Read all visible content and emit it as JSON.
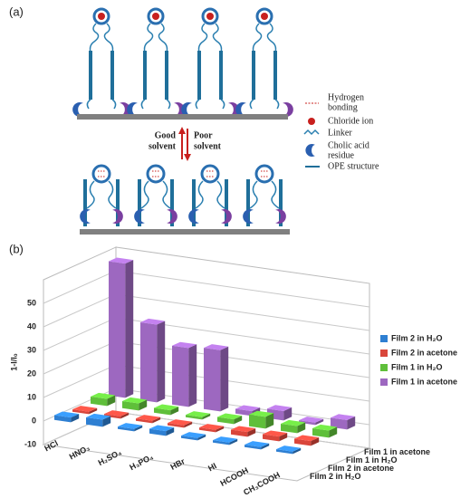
{
  "panel_a": {
    "label": "(a)",
    "legend": [
      {
        "label": [
          "Hydrogen",
          "bonding"
        ]
      },
      {
        "label": [
          "Chloride ion"
        ]
      },
      {
        "label": [
          "Linker"
        ]
      },
      {
        "label": [
          "Cholic acid",
          "residue"
        ]
      },
      {
        "label": [
          "OPE structure"
        ]
      }
    ],
    "good_solvent": [
      "Good",
      "solvent"
    ],
    "poor_solvent": [
      "Poor",
      "solvent"
    ]
  },
  "chart_data": {
    "type": "bar3d",
    "panel_label": "(b)",
    "ylabel": "1-I/I₀",
    "categories": [
      "HCl",
      "HNO₃",
      "H₂SO₄",
      "H₃PO₄",
      "HBr",
      "HI",
      "HCOOH",
      "CH₃COOH"
    ],
    "series": [
      {
        "name": "Film 2 in H₂O",
        "color": "#2e7fd2",
        "values": [
          2,
          3,
          1,
          2,
          1,
          1,
          1,
          1
        ]
      },
      {
        "name": "Film 2 in acetone",
        "color": "#d9463b",
        "values": [
          1,
          1,
          1,
          1,
          1,
          2,
          2,
          2
        ]
      },
      {
        "name": "Film 1 in H₂O",
        "color": "#5fbf3a",
        "values": [
          3,
          3,
          2,
          1,
          2,
          5,
          3,
          3
        ]
      },
      {
        "name": "Film 1 in acetone",
        "color": "#9d68c0",
        "values": [
          57,
          33,
          25,
          26,
          2,
          4,
          1,
          4
        ]
      }
    ],
    "ylim": [
      -10,
      60
    ],
    "yticks": [
      -10,
      0,
      10,
      20,
      30,
      40,
      50
    ],
    "grid": true,
    "legend": "right"
  }
}
